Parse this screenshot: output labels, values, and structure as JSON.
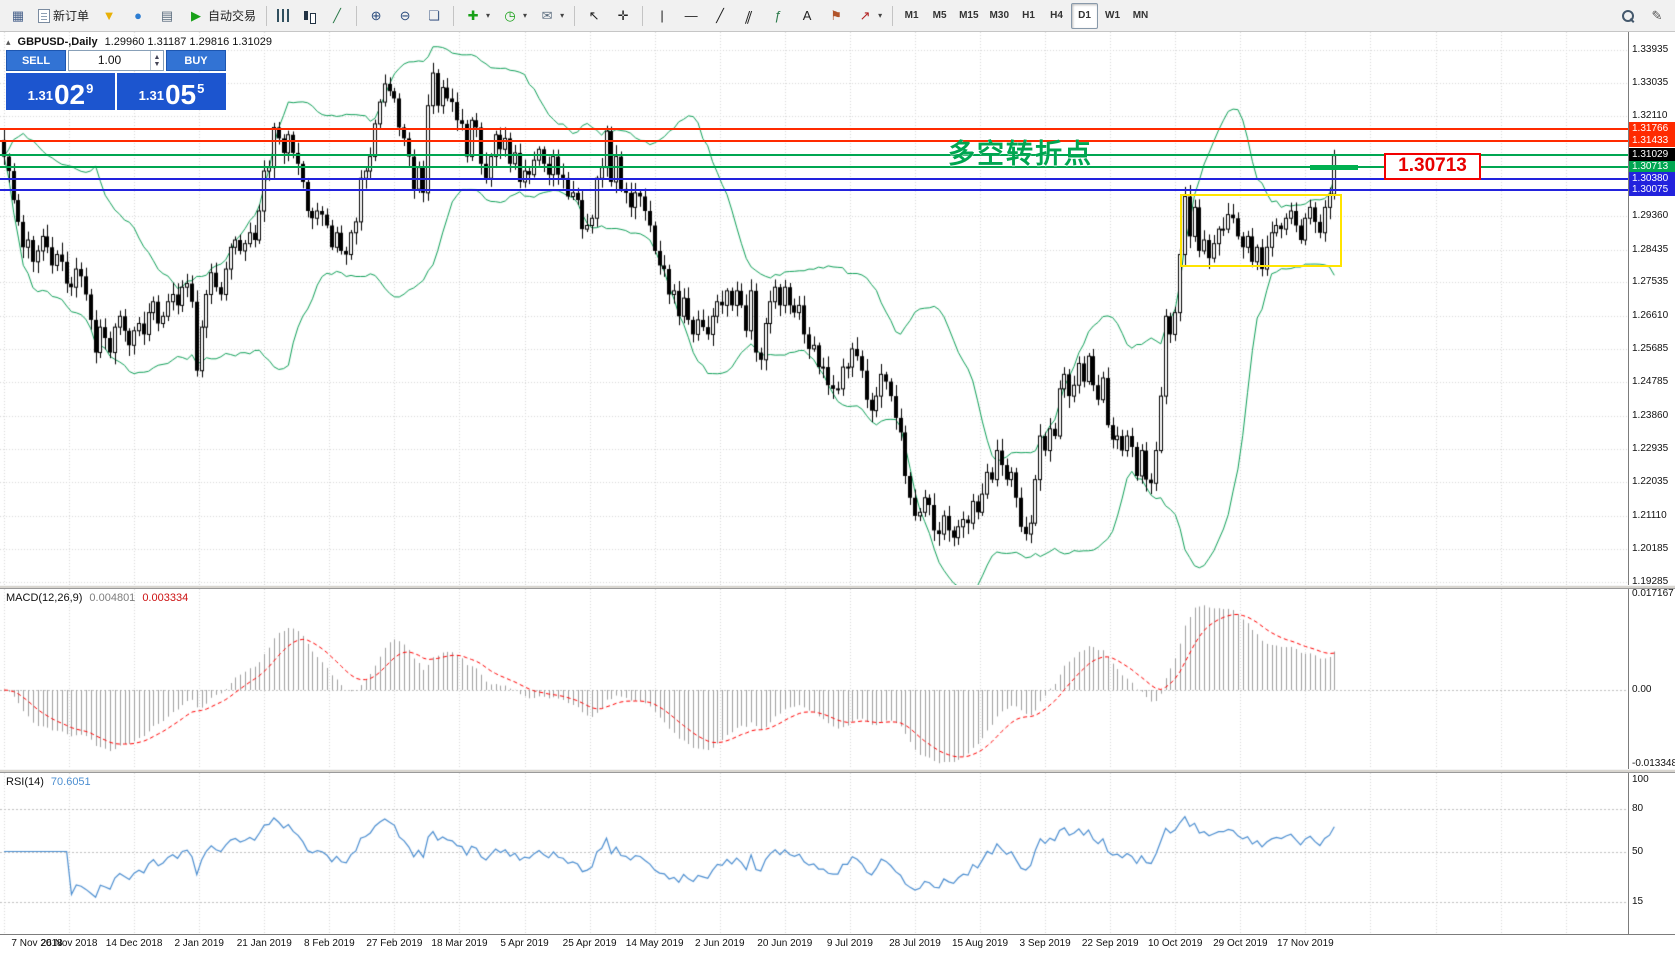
{
  "toolbar": {
    "items": [
      {
        "kind": "btn",
        "name": "new-chart-button",
        "icon": "new-chart-icon"
      },
      {
        "kind": "btn",
        "name": "new-order-button",
        "icon": "new-order-icon",
        "label": "新订单"
      },
      {
        "kind": "btn",
        "name": "metaeditor-button",
        "icon": "metaeditor-icon"
      },
      {
        "kind": "btn",
        "name": "navigator-button",
        "icon": "navigator-icon"
      },
      {
        "kind": "btn",
        "name": "data-window-button",
        "icon": "data-window-icon"
      },
      {
        "kind": "btn",
        "name": "autotrading-button",
        "icon": "autotrading-icon",
        "label": "自动交易"
      },
      {
        "kind": "sep"
      },
      {
        "kind": "btn",
        "name": "bar-chart-button",
        "icon": "bar-chart-icon"
      },
      {
        "kind": "btn",
        "name": "candlestick-chart-button",
        "icon": "candlestick-icon"
      },
      {
        "kind": "btn",
        "name": "line-chart-button",
        "icon": "line-chart-icon"
      },
      {
        "kind": "sep"
      },
      {
        "kind": "btn",
        "name": "zoom-in-button",
        "icon": "zoom-in-icon"
      },
      {
        "kind": "btn",
        "name": "zoom-out-button",
        "icon": "zoom-out-icon"
      },
      {
        "kind": "btn",
        "name": "tile-windows-button",
        "icon": "tile-windows-icon"
      },
      {
        "kind": "sep"
      },
      {
        "kind": "btn",
        "name": "indicators-button",
        "icon": "indicators-icon",
        "caret": true
      },
      {
        "kind": "btn",
        "name": "periods-button",
        "icon": "periods-icon",
        "caret": true
      },
      {
        "kind": "btn",
        "name": "templates-button",
        "icon": "templates-icon",
        "caret": true
      },
      {
        "kind": "sep"
      },
      {
        "kind": "btn",
        "name": "cursor-button",
        "icon": "cursor-icon"
      },
      {
        "kind": "btn",
        "name": "crosshair-button",
        "icon": "crosshair-icon"
      },
      {
        "kind": "sep"
      },
      {
        "kind": "btn",
        "name": "vertical-line-button",
        "icon": "vertical-line-icon"
      },
      {
        "kind": "btn",
        "name": "horizontal-line-button",
        "icon": "horizontal-line-icon"
      },
      {
        "kind": "btn",
        "name": "trendline-button",
        "icon": "trendline-icon"
      },
      {
        "kind": "btn",
        "name": "equidistant-channel-button",
        "icon": "channel-icon"
      },
      {
        "kind": "btn",
        "name": "fibonacci-button",
        "icon": "fibonacci-icon"
      },
      {
        "kind": "btn",
        "name": "text-button",
        "icon": "text-icon"
      },
      {
        "kind": "btn",
        "name": "label-button",
        "icon": "label-icon"
      },
      {
        "kind": "btn",
        "name": "arrows-button",
        "icon": "arrow-icon",
        "caret": true
      },
      {
        "kind": "sep"
      },
      {
        "kind": "tf",
        "label": "M1"
      },
      {
        "kind": "tf",
        "label": "M5"
      },
      {
        "kind": "tf",
        "label": "M15"
      },
      {
        "kind": "tf",
        "label": "M30"
      },
      {
        "kind": "tf",
        "label": "H1"
      },
      {
        "kind": "tf",
        "label": "H4"
      },
      {
        "kind": "tf",
        "label": "D1"
      },
      {
        "kind": "tf",
        "label": "W1"
      },
      {
        "kind": "tf",
        "label": "MN"
      }
    ],
    "active_timeframe": "D1",
    "right_items": [
      {
        "kind": "btn",
        "name": "search-button",
        "icon": "search-icon"
      },
      {
        "kind": "btn",
        "name": "edit-button",
        "icon": "pencil-icon"
      }
    ]
  },
  "trade_panel": {
    "sell_label": "SELL",
    "buy_label": "BUY",
    "volume": "1.00",
    "bid": {
      "prefix": "1.31",
      "big": "02",
      "sup": "9"
    },
    "ask": {
      "prefix": "1.31",
      "big": "05",
      "sup": "5"
    }
  },
  "chart_data": {
    "type": "candlestick",
    "symbol_label": "GBPUSD-,Daily",
    "ohlc_text": "1.29960 1.31187 1.29816 1.31029",
    "first_open": 1.3145,
    "last_ohlc": {
      "o": 1.2996,
      "h": 1.31187,
      "l": 1.29816,
      "c": 1.31029
    },
    "closes": [
      1.31,
      1.306,
      1.298,
      1.292,
      1.285,
      1.287,
      1.281,
      1.284,
      1.288,
      1.285,
      1.28,
      1.283,
      1.281,
      1.275,
      1.274,
      1.279,
      1.277,
      1.272,
      1.265,
      1.256,
      1.263,
      1.26,
      1.256,
      1.263,
      1.266,
      1.262,
      1.258,
      1.262,
      1.264,
      1.261,
      1.267,
      1.27,
      1.264,
      1.266,
      1.27,
      1.272,
      1.269,
      1.274,
      1.275,
      1.27,
      1.251,
      1.263,
      1.272,
      1.278,
      1.274,
      1.272,
      1.279,
      1.285,
      1.287,
      1.284,
      1.286,
      1.289,
      1.287,
      1.295,
      1.306,
      1.307,
      1.318,
      1.315,
      1.311,
      1.316,
      1.311,
      1.308,
      1.303,
      1.295,
      1.293,
      1.295,
      1.294,
      1.291,
      1.285,
      1.289,
      1.284,
      1.283,
      1.289,
      1.292,
      1.304,
      1.306,
      1.31,
      1.319,
      1.325,
      1.33,
      1.328,
      1.326,
      1.318,
      1.315,
      1.31,
      1.301,
      1.307,
      1.3,
      1.324,
      1.333,
      1.324,
      1.329,
      1.326,
      1.325,
      1.32,
      1.319,
      1.31,
      1.32,
      1.318,
      1.308,
      1.304,
      1.31,
      1.316,
      1.312,
      1.315,
      1.308,
      1.311,
      1.303,
      1.306,
      1.305,
      1.309,
      1.312,
      1.308,
      1.305,
      1.31,
      1.305,
      1.304,
      1.299,
      1.3,
      1.298,
      1.29,
      1.291,
      1.293,
      1.304,
      1.307,
      1.317,
      1.303,
      1.31,
      1.301,
      1.3,
      1.296,
      1.3,
      1.299,
      1.295,
      1.291,
      1.284,
      1.28,
      1.279,
      1.272,
      1.273,
      1.266,
      1.271,
      1.265,
      1.261,
      1.265,
      1.263,
      1.261,
      1.266,
      1.27,
      1.269,
      1.273,
      1.269,
      1.273,
      1.269,
      1.262,
      1.273,
      1.256,
      1.254,
      1.264,
      1.27,
      1.274,
      1.269,
      1.274,
      1.269,
      1.267,
      1.269,
      1.261,
      1.257,
      1.258,
      1.252,
      1.252,
      1.247,
      1.246,
      1.246,
      1.252,
      1.252,
      1.257,
      1.255,
      1.251,
      1.243,
      1.24,
      1.244,
      1.25,
      1.248,
      1.244,
      1.238,
      1.234,
      1.222,
      1.216,
      1.211,
      1.212,
      1.216,
      1.214,
      1.207,
      1.206,
      1.211,
      1.207,
      1.205,
      1.208,
      1.21,
      1.209,
      1.215,
      1.212,
      1.217,
      1.223,
      1.221,
      1.229,
      1.225,
      1.221,
      1.223,
      1.216,
      1.208,
      1.206,
      1.209,
      1.221,
      1.233,
      1.229,
      1.235,
      1.233,
      1.246,
      1.25,
      1.244,
      1.247,
      1.253,
      1.248,
      1.255,
      1.247,
      1.243,
      1.249,
      1.236,
      1.232,
      1.233,
      1.229,
      1.233,
      1.23,
      1.222,
      1.229,
      1.221,
      1.22,
      1.229,
      1.244,
      1.266,
      1.261,
      1.267,
      1.283,
      1.299,
      1.288,
      1.296,
      1.284,
      1.287,
      1.282,
      1.286,
      1.29,
      1.29,
      1.294,
      1.293,
      1.288,
      1.285,
      1.288,
      1.281,
      1.285,
      1.279,
      1.285,
      1.289,
      1.291,
      1.29,
      1.293,
      1.295,
      1.291,
      1.287,
      1.293,
      1.296,
      1.292,
      1.289,
      1.296,
      1.2996,
      1.31029
    ],
    "price_ticks": [
      "1.33935",
      "1.33035",
      "1.32110",
      "1.29360",
      "1.28435",
      "1.27535",
      "1.26610",
      "1.25685",
      "1.24785",
      "1.23860",
      "1.22935",
      "1.22035",
      "1.21110",
      "1.20185",
      "1.19285"
    ],
    "dates": [
      "7 Nov 2018",
      "26 Nov 2018",
      "14 Dec 2018",
      "2 Jan 2019",
      "21 Jan 2019",
      "8 Feb 2019",
      "27 Feb 2019",
      "18 Mar 2019",
      "5 Apr 2019",
      "25 Apr 2019",
      "14 May 2019",
      "2 Jun 2019",
      "20 Jun 2019",
      "9 Jul 2019",
      "28 Jul 2019",
      "15 Aug 2019",
      "3 Sep 2019",
      "22 Sep 2019",
      "10 Oct 2019",
      "29 Oct 2019",
      "17 Nov 2019"
    ],
    "bollinger_color": "#0fa058",
    "candle_color": "#000000"
  },
  "chart_objects": {
    "hlines": [
      {
        "price": 1.31766,
        "label": "1.31766",
        "color": "#ff2a00",
        "tag": true
      },
      {
        "price": 1.31433,
        "label": "1.31433",
        "color": "#ff2a00",
        "tag": true
      },
      {
        "price": 1.3103,
        "label": "1.31030",
        "color": "#00a651",
        "tag": false
      },
      {
        "price": 1.30713,
        "label": "1.30713",
        "color": "#00a651",
        "tag": true
      },
      {
        "price": 1.3038,
        "label": "1.30380",
        "color": "#2222dd",
        "tag": true
      },
      {
        "price": 1.30075,
        "label": "1.30075",
        "color": "#2222dd",
        "tag": true
      }
    ],
    "current_price": {
      "value": 1.31029,
      "label": "1.31029",
      "tag_color": "#000000"
    },
    "yellow_box": {
      "i1": 244,
      "i2": 277.6,
      "price_top": 1.2997,
      "price_bottom": 1.2795,
      "color": "#ffe400"
    },
    "green_segment": {
      "price": 1.30713,
      "i1": 271,
      "i2": 281,
      "color": "#00b050"
    }
  },
  "annotations": {
    "turning_point_text": "多空转折点",
    "price_callout_text": "1.30713"
  },
  "indicators": {
    "macd": {
      "label": "MACD(12,26,9)",
      "value_main": "0.004801",
      "value_signal": "0.003334",
      "scale": [
        {
          "text": "0.017167",
          "value": 0.017167
        },
        {
          "text": "0.00",
          "value": 0
        },
        {
          "text": "-0.013348",
          "value": -0.013348
        }
      ],
      "histogram_color": "#a0a0a0",
      "signal_color": "#ff0000"
    },
    "rsi": {
      "label": "RSI(14)",
      "value": "70.6051",
      "levels": [
        {
          "text": "100",
          "value": 100
        },
        {
          "text": "80",
          "value": 80
        },
        {
          "text": "50",
          "value": 50
        },
        {
          "text": "15",
          "value": 15
        }
      ],
      "line_color": "#4d8fd1"
    }
  }
}
